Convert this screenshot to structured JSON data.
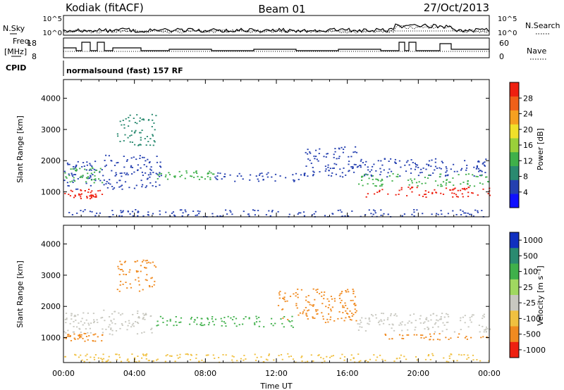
{
  "header": {
    "station": "Kodiak (fitACF)",
    "beam": "Beam 01",
    "date": "27/Oct/2013"
  },
  "summary_panels": {
    "noise": {
      "left_label": "N.Sky",
      "right_label": "N.Search",
      "left_ticks": [
        "10^5",
        "10^0"
      ],
      "right_ticks": [
        "10^5",
        "10^0"
      ]
    },
    "freq": {
      "left_label_1": "Freq.",
      "left_label_2": "[MHz]",
      "right_label": "Nave",
      "left_ticks": [
        "18",
        "8"
      ],
      "right_ticks": [
        "60",
        "0"
      ]
    },
    "cpid": {
      "label": "CPID",
      "text": "normalsound (fast) 157 RF"
    }
  },
  "chart_data": [
    {
      "type": "heatmap",
      "title": "",
      "parameter": "Power",
      "ylabel": "Slant Range [km]",
      "xlabel": "",
      "ylim": [
        200,
        4600
      ],
      "yticks": [
        "1000",
        "2000",
        "3000",
        "4000"
      ],
      "colorbar_label": "Power [dB]",
      "colorbar_ticks": [
        "4",
        "8",
        "12",
        "16",
        "20",
        "24",
        "28"
      ],
      "colorbar_colors": [
        "#1010ff",
        "#2540b0",
        "#2a8a70",
        "#3fb04a",
        "#9ad03a",
        "#f0e02a",
        "#f5a020",
        "#f06018",
        "#ee2010"
      ],
      "scatter_bands": [
        {
          "t0": 0.0,
          "t1": 2.2,
          "r0": 800,
          "r1": 1100,
          "color": "#ee2010"
        },
        {
          "t0": 0.0,
          "t1": 2.2,
          "r0": 1100,
          "r1": 2000,
          "color": "#2540b0"
        },
        {
          "t0": 0.0,
          "t1": 2.2,
          "r0": 1300,
          "r1": 1800,
          "color": "#3fb04a"
        },
        {
          "t0": 2.2,
          "t1": 5.5,
          "r0": 1100,
          "r1": 2200,
          "color": "#2540b0"
        },
        {
          "t0": 3.0,
          "t1": 5.2,
          "r0": 2500,
          "r1": 3500,
          "color": "#2a8a70"
        },
        {
          "t0": 5.0,
          "t1": 8.5,
          "r0": 1400,
          "r1": 1700,
          "color": "#3fb04a"
        },
        {
          "t0": 8.5,
          "t1": 13.5,
          "r0": 1350,
          "r1": 1650,
          "color": "#2540b0"
        },
        {
          "t0": 13.5,
          "t1": 16.5,
          "r0": 1500,
          "r1": 2500,
          "color": "#2540b0"
        },
        {
          "t0": 16.5,
          "t1": 24.0,
          "r0": 1500,
          "r1": 2100,
          "color": "#2540b0"
        },
        {
          "t0": 16.5,
          "t1": 24.0,
          "r0": 1200,
          "r1": 1600,
          "color": "#3fb04a"
        },
        {
          "t0": 17.0,
          "t1": 24.0,
          "r0": 850,
          "r1": 1200,
          "color": "#ee2010"
        },
        {
          "t0": 0.0,
          "t1": 24.0,
          "r0": 220,
          "r1": 450,
          "color": "#2540b0"
        }
      ]
    },
    {
      "type": "heatmap",
      "title": "",
      "parameter": "Velocity",
      "ylabel": "Slant Range [km]",
      "xlabel": "Time UT",
      "ylim": [
        200,
        4600
      ],
      "yticks": [
        "1000",
        "2000",
        "3000",
        "4000"
      ],
      "xticks": [
        "00:00",
        "04:00",
        "08:00",
        "12:00",
        "16:00",
        "20:00",
        "00:00"
      ],
      "xlim_hours": [
        0,
        24
      ],
      "colorbar_label": "Velocity [m s⁻¹]",
      "colorbar_ticks": [
        "1000",
        "500",
        "100",
        "25",
        "-25",
        "-100",
        "-500",
        "-1000"
      ],
      "colorbar_colors": [
        "#1030c0",
        "#2a8a70",
        "#3fb04a",
        "#a0d860",
        "#c8c8c0",
        "#f0c040",
        "#f08a20",
        "#ee2010"
      ],
      "scatter_bands": [
        {
          "t0": 0.0,
          "t1": 5.0,
          "r0": 1100,
          "r1": 1900,
          "color": "#c8c8c0"
        },
        {
          "t0": 0.0,
          "t1": 2.2,
          "r0": 900,
          "r1": 1150,
          "color": "#f08a20"
        },
        {
          "t0": 3.0,
          "t1": 5.2,
          "r0": 2500,
          "r1": 3500,
          "color": "#f08a20"
        },
        {
          "t0": 5.0,
          "t1": 8.5,
          "r0": 1400,
          "r1": 1700,
          "color": "#3fb04a"
        },
        {
          "t0": 8.5,
          "t1": 13.0,
          "r0": 1350,
          "r1": 1700,
          "color": "#3fb04a"
        },
        {
          "t0": 12.0,
          "t1": 16.5,
          "r0": 1500,
          "r1": 2600,
          "color": "#f08a20"
        },
        {
          "t0": 16.5,
          "t1": 24.0,
          "r0": 1200,
          "r1": 1800,
          "color": "#c8c8c0"
        },
        {
          "t0": 17.0,
          "t1": 24.0,
          "r0": 950,
          "r1": 1150,
          "color": "#f08a20"
        },
        {
          "t0": 0.0,
          "t1": 24.0,
          "r0": 220,
          "r1": 500,
          "color": "#f0c040"
        }
      ]
    }
  ]
}
